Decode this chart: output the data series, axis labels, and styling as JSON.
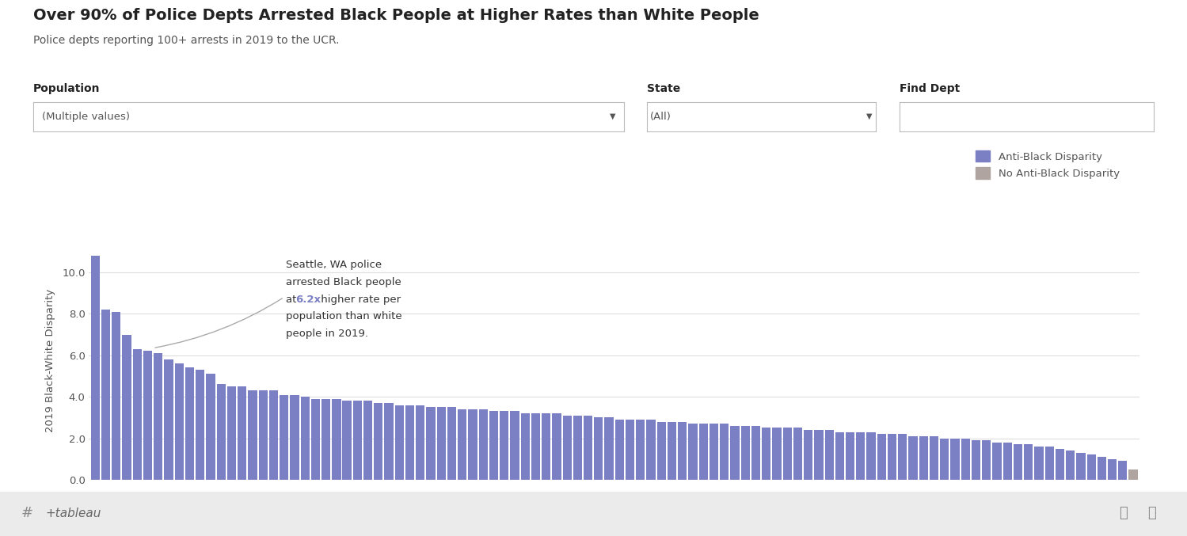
{
  "title": "Over 90% of Police Depts Arrested Black People at Higher Rates than White People",
  "subtitle": "Police depts reporting 100+ arrests in 2019 to the UCR.",
  "ylabel": "2019 Black-White Disparity",
  "population_label": "Population",
  "population_value": "(Multiple values)",
  "state_label": "State",
  "state_value": "(All)",
  "find_dept_label": "Find Dept",
  "legend_blue": "Anti-Black Disparity",
  "legend_gray": "No Anti-Black Disparity",
  "bar_color_blue": "#7B7FC4",
  "bar_color_gray": "#B0A4A0",
  "annotation_highlight_color": "#7B7FC4",
  "bg_color": "#F4F4F4",
  "white": "#FFFFFF",
  "title_fontsize": 14,
  "subtitle_fontsize": 10,
  "ylim": [
    0,
    11.5
  ],
  "yticks": [
    0.0,
    2.0,
    4.0,
    6.0,
    8.0,
    10.0
  ],
  "values": [
    10.8,
    8.2,
    8.1,
    7.0,
    6.3,
    6.2,
    6.1,
    5.8,
    5.6,
    5.4,
    5.3,
    5.1,
    4.6,
    4.5,
    4.5,
    4.3,
    4.3,
    4.3,
    4.1,
    4.1,
    4.0,
    3.9,
    3.9,
    3.9,
    3.8,
    3.8,
    3.8,
    3.7,
    3.7,
    3.6,
    3.6,
    3.6,
    3.5,
    3.5,
    3.5,
    3.4,
    3.4,
    3.4,
    3.3,
    3.3,
    3.3,
    3.2,
    3.2,
    3.2,
    3.2,
    3.1,
    3.1,
    3.1,
    3.0,
    3.0,
    2.9,
    2.9,
    2.9,
    2.9,
    2.8,
    2.8,
    2.8,
    2.7,
    2.7,
    2.7,
    2.7,
    2.6,
    2.6,
    2.6,
    2.5,
    2.5,
    2.5,
    2.5,
    2.4,
    2.4,
    2.4,
    2.3,
    2.3,
    2.3,
    2.3,
    2.2,
    2.2,
    2.2,
    2.1,
    2.1,
    2.1,
    2.0,
    2.0,
    2.0,
    1.9,
    1.9,
    1.8,
    1.8,
    1.7,
    1.7,
    1.6,
    1.6,
    1.5,
    1.4,
    1.3,
    1.2,
    1.1,
    1.0,
    0.9,
    0.5
  ],
  "seattle_bar_index": 5,
  "n_gray": 1,
  "footer_bg": "#EBEBEB"
}
